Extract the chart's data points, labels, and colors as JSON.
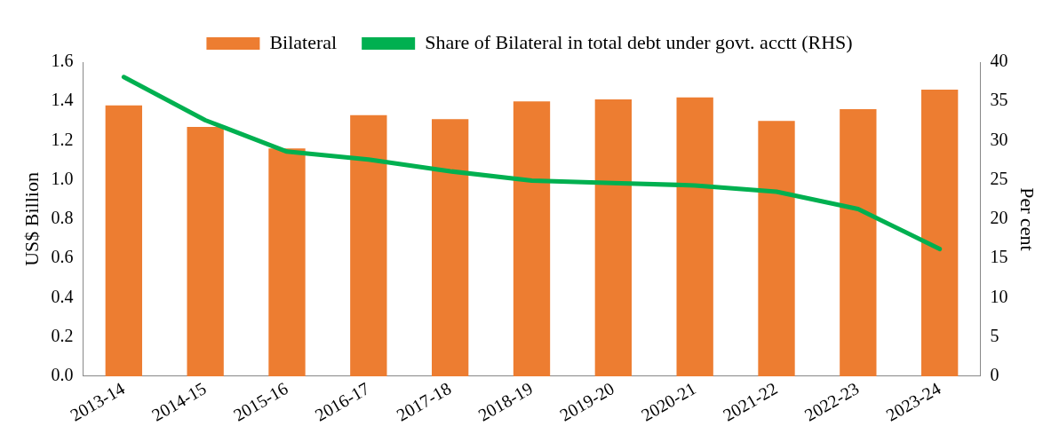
{
  "chart_data": {
    "type": "bar",
    "ylabel": "US$ Billion",
    "y2label": "Per cent",
    "categories": [
      "2013-14",
      "2014-15",
      "2015-16",
      "2016-17",
      "2017-18",
      "2018-19",
      "2019-20",
      "2020-21",
      "2021-22",
      "2022-23",
      "2023-24"
    ],
    "series": [
      {
        "name": "Bilateral",
        "color": "#ed7d31",
        "values": [
          1.38,
          1.27,
          1.16,
          1.33,
          1.31,
          1.4,
          1.41,
          1.42,
          1.3,
          1.36,
          1.46
        ]
      },
      {
        "name": "Share of Bilateral in total debt under govt. acctt (RHS)",
        "type": "line",
        "axis": "y2",
        "color": "#00b050",
        "values": [
          38.1,
          32.6,
          28.6,
          27.6,
          26.1,
          24.9,
          24.6,
          24.3,
          23.5,
          21.3,
          16.2
        ]
      }
    ],
    "ylim": [
      0,
      1.6
    ],
    "yticks": [
      {
        "value": 0,
        "label": "0.0"
      },
      {
        "value": 0.2,
        "label": "0.2"
      },
      {
        "value": 0.4,
        "label": "0.4"
      },
      {
        "value": 0.6,
        "label": "0.6"
      },
      {
        "value": 0.8,
        "label": "0.8"
      },
      {
        "value": 1,
        "label": "1.0"
      },
      {
        "value": 1.2,
        "label": "1.2"
      },
      {
        "value": 1.4,
        "label": "1.4"
      },
      {
        "value": 1.6,
        "label": "1.6"
      }
    ],
    "y2lim": [
      0,
      40
    ],
    "y2ticks": [
      0,
      5,
      10,
      15,
      20,
      25,
      30,
      35,
      40
    ],
    "legend": "top",
    "grid": false,
    "marker": "none",
    "line_style": "solid"
  }
}
